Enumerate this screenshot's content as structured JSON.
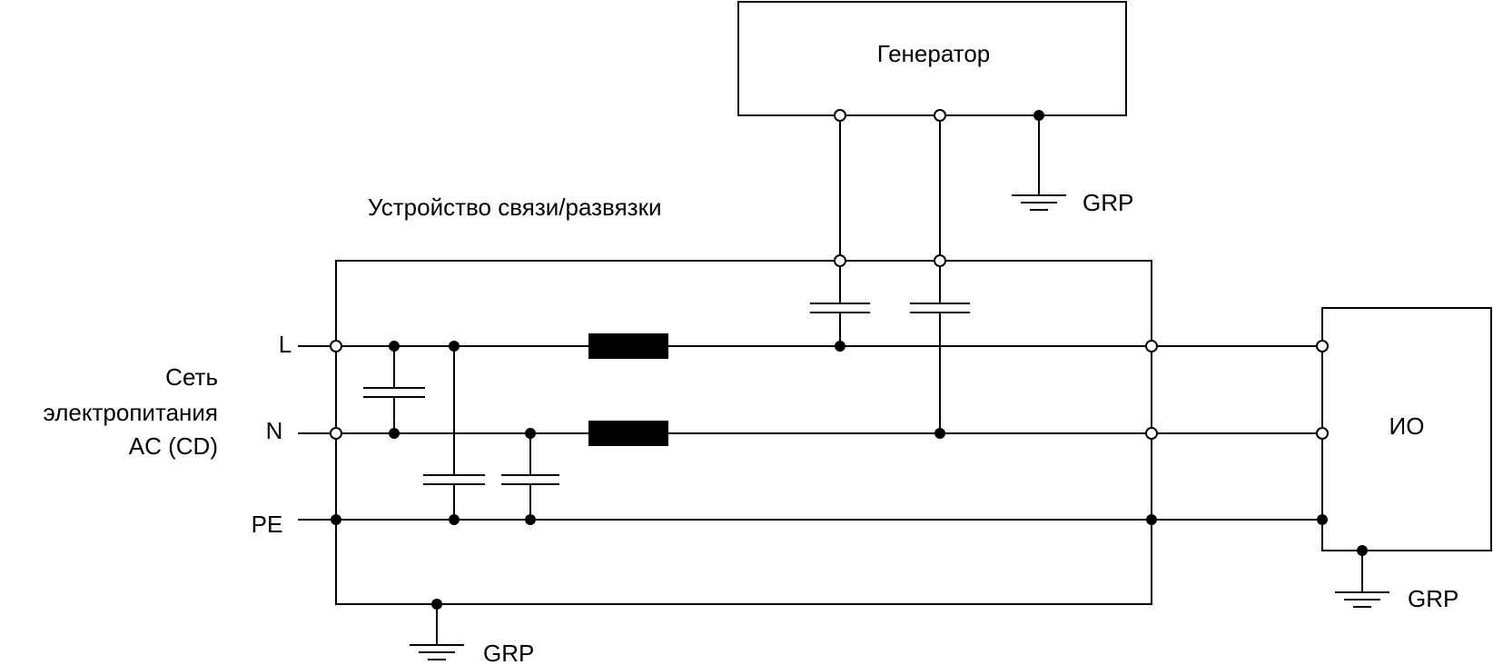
{
  "generator": {
    "label": "Генератор"
  },
  "coupling_device": {
    "label": "Устройство связи/развязки"
  },
  "eut": {
    "label": "ИО"
  },
  "supply": {
    "lines": [
      "Сеть",
      "электропитания",
      "AC (CD)"
    ]
  },
  "conductors": {
    "L": "L",
    "N": "N",
    "PE": "PE"
  },
  "ground_labels": {
    "generator": "GRP",
    "coupling": "GRP",
    "eut": "GRP"
  }
}
